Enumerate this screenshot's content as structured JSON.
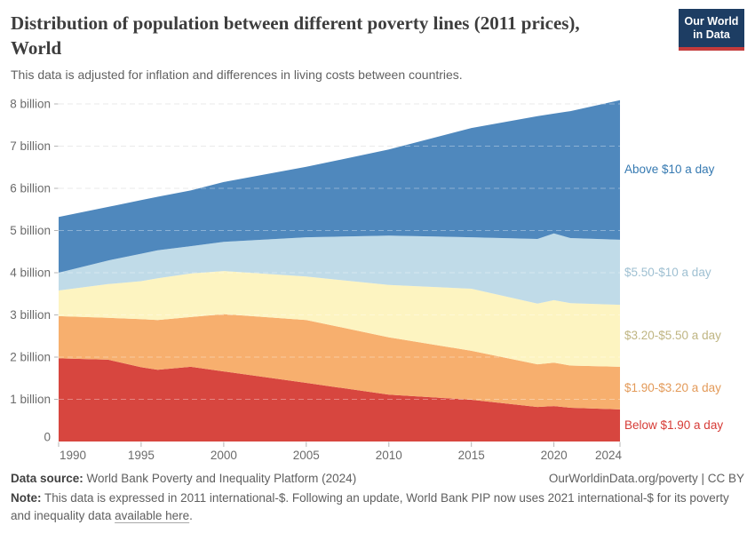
{
  "header": {
    "title_line1": "Distribution of population between different poverty lines (2011 prices),",
    "title_line2": "World",
    "subtitle": "This data is adjusted for inflation and differences in living costs between countries.",
    "logo": {
      "line1": "Our World",
      "line2": "in Data",
      "bg_color": "#1d3d63",
      "stripe_color": "#c43b3b"
    }
  },
  "chart_data": {
    "type": "area",
    "stacked": true,
    "title": "Distribution of population between different poverty lines (2011 prices), World",
    "xlabel": "",
    "ylabel": "",
    "unit": "billion people",
    "grid": "dashed",
    "legend_position": "right-of-plot",
    "x": [
      1990,
      1993,
      1995,
      1996,
      1998,
      2000,
      2005,
      2010,
      2015,
      2019,
      2020,
      2021,
      2024
    ],
    "series": [
      {
        "name": "Below $1.90 a day",
        "fill": "#d7463f",
        "label_color": "#d63b36",
        "values": [
          1.97,
          1.94,
          1.76,
          1.7,
          1.77,
          1.66,
          1.39,
          1.11,
          0.99,
          0.82,
          0.84,
          0.8,
          0.76
        ]
      },
      {
        "name": "$1.90-$3.20 a day",
        "fill": "#f7af6e",
        "label_color": "#e39a59",
        "values": [
          1.0,
          0.99,
          1.14,
          1.18,
          1.18,
          1.36,
          1.49,
          1.36,
          1.16,
          1.01,
          1.03,
          1.0,
          1.01
        ]
      },
      {
        "name": "$3.20-$5.50 a day",
        "fill": "#fdf4c1",
        "label_color": "#bfb582",
        "values": [
          0.61,
          0.8,
          0.9,
          0.99,
          1.03,
          1.02,
          1.03,
          1.24,
          1.47,
          1.44,
          1.48,
          1.48,
          1.47
        ]
      },
      {
        "name": "$5.50-$10 a day",
        "fill": "#c0dbe8",
        "label_color": "#9fc0d2",
        "values": [
          0.42,
          0.56,
          0.65,
          0.66,
          0.65,
          0.69,
          0.93,
          1.17,
          1.22,
          1.53,
          1.58,
          1.54,
          1.54
        ]
      },
      {
        "name": "Above $10 a day",
        "fill": "#4f88bd",
        "label_color": "#3579b1",
        "values": [
          1.32,
          1.27,
          1.27,
          1.27,
          1.32,
          1.42,
          1.67,
          2.04,
          2.59,
          2.91,
          2.84,
          3.01,
          3.31
        ]
      }
    ],
    "ylim": [
      0,
      8.4
    ],
    "y_ticks": [
      {
        "value": 0,
        "label": "0"
      },
      {
        "value": 1,
        "label": "1 billion"
      },
      {
        "value": 2,
        "label": "2 billion"
      },
      {
        "value": 3,
        "label": "3 billion"
      },
      {
        "value": 4,
        "label": "4 billion"
      },
      {
        "value": 5,
        "label": "5 billion"
      },
      {
        "value": 6,
        "label": "6 billion"
      },
      {
        "value": 7,
        "label": "7 billion"
      },
      {
        "value": 8,
        "label": "8 billion"
      }
    ],
    "x_ticks": [
      1990,
      1995,
      2000,
      2005,
      2010,
      2015,
      2020,
      2024
    ]
  },
  "footer": {
    "source_label": "Data source:",
    "source_text": " World Bank Poverty and Inequality Platform (2024)",
    "credit": "OurWorldinData.org/poverty | CC BY",
    "note_label": "Note:",
    "note_text": " This data is expressed in 2011 international-$. Following an update, World Bank PIP now uses 2021 international-$ for its poverty and inequality data ",
    "note_link": "available here",
    "note_suffix": "."
  }
}
